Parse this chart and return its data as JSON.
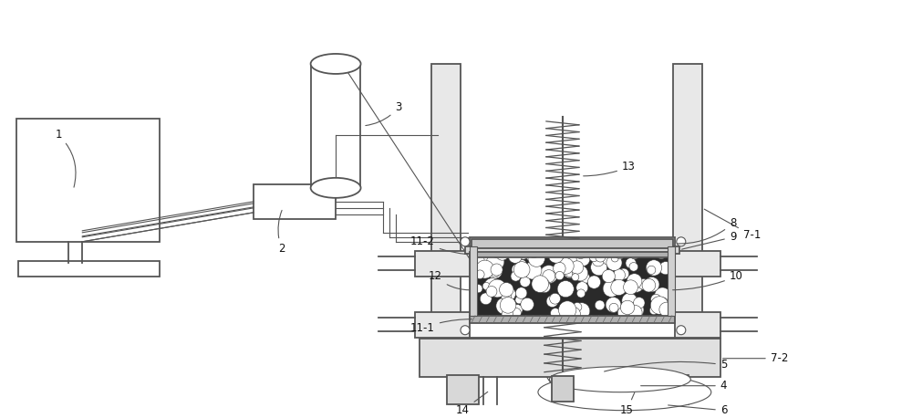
{
  "bg_color": "#ffffff",
  "line_color": "#555555",
  "label_color": "#111111",
  "label_fontsize": 8.5,
  "figsize": [
    10.0,
    4.58
  ],
  "dpi": 100,
  "lw_main": 1.3,
  "lw_thin": 0.8
}
